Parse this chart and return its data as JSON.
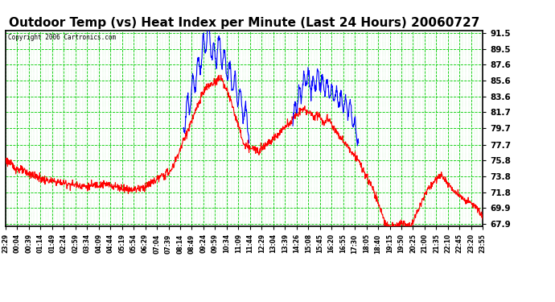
{
  "title": "Outdoor Temp (vs) Heat Index per Minute (Last 24 Hours) 20060727",
  "copyright": "Copyright 2006 Cartronics.com",
  "y_min": 67.9,
  "y_max": 91.5,
  "yticks": [
    91.5,
    89.5,
    87.6,
    85.6,
    83.6,
    81.7,
    79.7,
    77.7,
    75.8,
    73.8,
    71.8,
    69.9,
    67.9
  ],
  "x_labels": [
    "23:29",
    "00:04",
    "00:39",
    "01:14",
    "01:49",
    "02:24",
    "02:59",
    "03:34",
    "04:09",
    "04:44",
    "05:19",
    "05:54",
    "06:29",
    "07:04",
    "07:39",
    "08:14",
    "08:49",
    "09:24",
    "09:59",
    "10:34",
    "11:09",
    "11:44",
    "12:29",
    "13:04",
    "13:39",
    "14:26",
    "15:08",
    "15:45",
    "16:20",
    "16:55",
    "17:30",
    "18:05",
    "18:40",
    "19:15",
    "19:50",
    "20:25",
    "21:00",
    "21:35",
    "22:10",
    "22:45",
    "23:20",
    "23:55"
  ],
  "title_fontsize": 11,
  "title_color": "#000000",
  "bg_color": "#ffffff",
  "fig_bg_color": "#ffffff",
  "grid_color": "#00cc00",
  "line_color_red": "#ff0000",
  "line_color_blue": "#0000ff",
  "line_width": 0.8
}
